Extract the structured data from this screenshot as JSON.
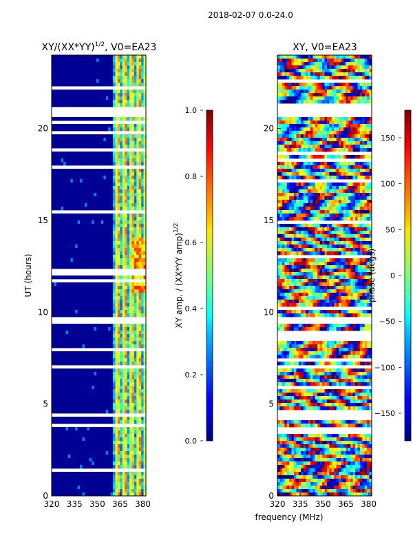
{
  "suptitle": "2018-02-07 0.0-24.0",
  "chart_data": [
    {
      "type": "heatmap",
      "title_main": "XY/(XX*YY)",
      "title_sup": "1/2",
      "title_rest": ", V0=EA23",
      "ylabel": "UT (hours)",
      "xlabel": "",
      "xlim": [
        320,
        382
      ],
      "ylim": [
        0,
        24
      ],
      "xticks": [
        "320",
        "335",
        "350",
        "365",
        "380"
      ],
      "xtick_values": [
        320,
        335,
        350,
        365,
        380
      ],
      "yticks": [
        "0",
        "5",
        "10",
        "15",
        "20"
      ],
      "ytick_values": [
        0,
        5,
        10,
        15,
        20
      ],
      "colormap": "jet",
      "colorbar": {
        "label_main": "XY amp. / (XX*YY amp)",
        "label_sup": "1/2",
        "range": [
          0.0,
          1.0
        ],
        "ticks": [
          "0.0",
          "0.2",
          "0.4",
          "0.6",
          "0.8",
          "1.0"
        ],
        "tick_values": [
          0.0,
          0.2,
          0.4,
          0.6,
          0.8,
          1.0
        ]
      },
      "blank_hours": [
        [
          20.7,
          21.1
        ],
        [
          9.3,
          9.7
        ],
        [
          6.9,
          7.1
        ],
        [
          4.3,
          4.5
        ]
      ],
      "high_band_mhz": [
        360,
        382
      ]
    },
    {
      "type": "heatmap",
      "title": "XY, V0=EA23",
      "ylabel": "",
      "xlabel": "frequency (MHz)",
      "xlim": [
        320,
        382
      ],
      "ylim": [
        0,
        24
      ],
      "xticks": [
        "320",
        "335",
        "350",
        "365",
        "380"
      ],
      "xtick_values": [
        320,
        335,
        350,
        365,
        380
      ],
      "yticks": [
        "0",
        "5",
        "10",
        "15",
        "20"
      ],
      "ytick_values": [
        0,
        5,
        10,
        15,
        20
      ],
      "colormap": "jet",
      "colorbar": {
        "label": "phase (degs)",
        "range": [
          -180,
          180
        ],
        "ticks": [
          "−150",
          "−100",
          "−50",
          "0",
          "50",
          "100",
          "150"
        ],
        "tick_values": [
          -150,
          -100,
          -50,
          0,
          50,
          100,
          150
        ]
      },
      "blank_hours": [
        [
          20.7,
          21.1
        ],
        [
          9.3,
          9.7
        ],
        [
          6.9,
          7.1
        ],
        [
          4.3,
          4.5
        ]
      ]
    }
  ]
}
